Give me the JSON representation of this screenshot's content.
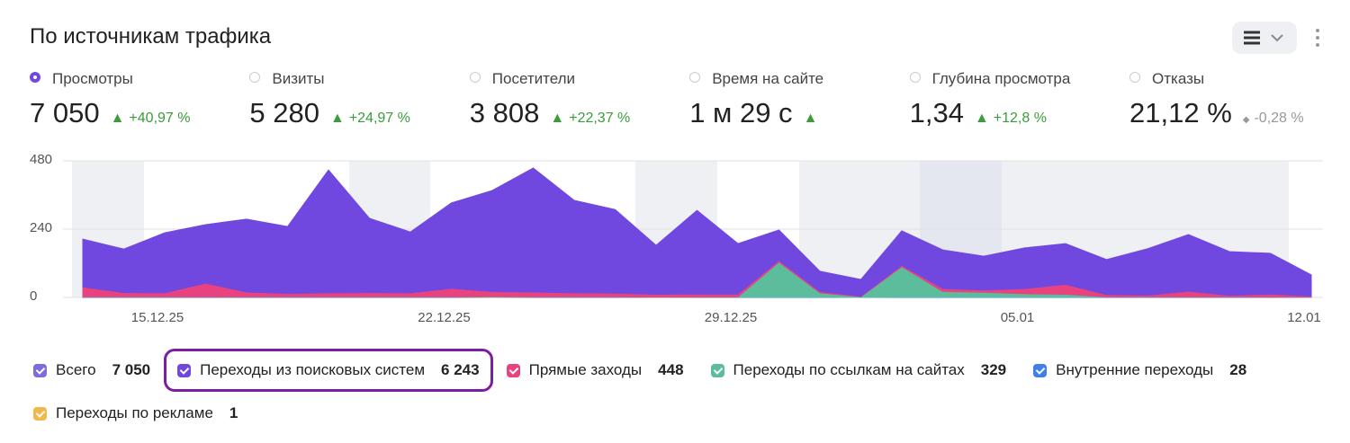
{
  "header": {
    "title": "По источникам трафика"
  },
  "metrics": [
    {
      "label": "Просмотры",
      "value": "7 050",
      "change": "+40,97 %",
      "trend": "up",
      "selected": true
    },
    {
      "label": "Визиты",
      "value": "5 280",
      "change": "+24,97 %",
      "trend": "up"
    },
    {
      "label": "Посетители",
      "value": "3 808",
      "change": "+22,37 %",
      "trend": "up"
    },
    {
      "label": "Время на сайте",
      "value": "1 м 29 с",
      "trend": "up"
    },
    {
      "label": "Глубина просмотра",
      "value": "1,34",
      "change": "+12,8 %",
      "trend": "up"
    },
    {
      "label": "Отказы",
      "value": "21,12 %",
      "change": "-0,28 %",
      "trend": "flat"
    }
  ],
  "chart_data": {
    "type": "stacked-area",
    "categories": [
      null,
      null,
      "15.12.25",
      null,
      null,
      null,
      null,
      null,
      null,
      "22.12.25",
      null,
      null,
      null,
      null,
      null,
      null,
      "29.12.25",
      null,
      null,
      null,
      null,
      null,
      null,
      "05.01",
      null,
      null,
      null,
      null,
      null,
      null,
      "12.01"
    ],
    "ylim": [
      0,
      480
    ],
    "yticks": [
      0,
      240,
      480
    ],
    "grid": true,
    "series": [
      {
        "name": "Всего",
        "total": "7 050",
        "color": "#7b6de0"
      },
      {
        "name": "Переходы из поисковых систем",
        "total": "6 243",
        "color": "#7048e0",
        "highlighted": true,
        "values": [
          168,
          153,
          211,
          206,
          256,
          235,
          432,
          261,
          214,
          300,
          355,
          436,
          325,
          294,
          172,
          294,
          177,
          107,
          71,
          59,
          121,
          136,
          119,
          143,
          143,
          123,
          163,
          199,
          154,
          143,
          74
        ]
      },
      {
        "name": "Прямые заходы",
        "total": "448",
        "color": "#e8437f",
        "values": [
          35,
          15,
          14,
          48,
          17,
          12,
          14,
          15,
          14,
          30,
          18,
          17,
          14,
          13,
          10,
          10,
          10,
          6,
          5,
          2,
          5,
          10,
          8,
          18,
          35,
          8,
          6,
          20,
          5,
          10,
          4
        ]
      },
      {
        "name": "Переходы по ссылкам на сайтах",
        "total": "329",
        "color": "#5bbd9c",
        "values": [
          1,
          1,
          1,
          1,
          1,
          1,
          1,
          1,
          1,
          1,
          1,
          1,
          1,
          1,
          1,
          1,
          1,
          123,
          15,
          2,
          107,
          20,
          17,
          12,
          10,
          1,
          1,
          1,
          1,
          1,
          1
        ]
      },
      {
        "name": "Внутренние переходы",
        "total": "28",
        "color": "#3f7fe8",
        "values": [
          1,
          1,
          1,
          1,
          1,
          1,
          1,
          1,
          1,
          1,
          1,
          1,
          1,
          1,
          0,
          1,
          1,
          1,
          1,
          0,
          1,
          1,
          1,
          1,
          1,
          1,
          1,
          1,
          1,
          1,
          0
        ]
      },
      {
        "name": "Переходы по рекламе",
        "total": "1",
        "color": "#f2b84b",
        "values": [
          0,
          0,
          0,
          0,
          0,
          0,
          0,
          0,
          0,
          0,
          1,
          0,
          0,
          0,
          0,
          0,
          0,
          0,
          0,
          0,
          0,
          0,
          0,
          0,
          0,
          0,
          0,
          0,
          0,
          0,
          0
        ]
      }
    ]
  }
}
